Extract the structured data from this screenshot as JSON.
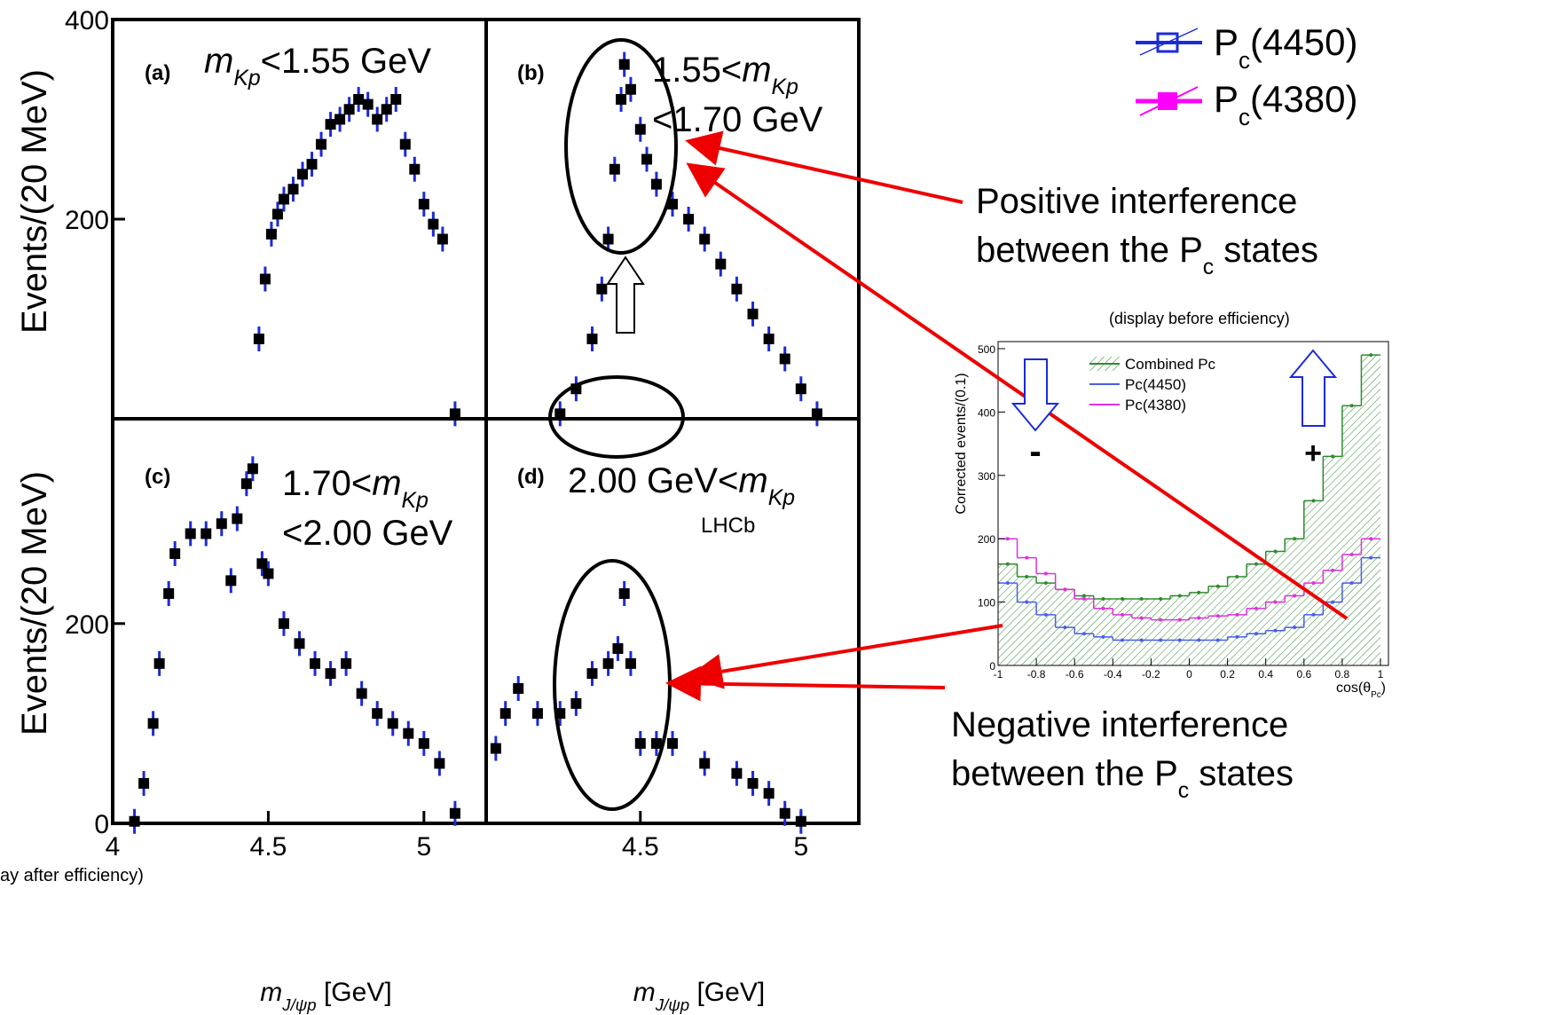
{
  "legend": [
    [
      {
        "text": "P"
      },
      {
        "text": "c",
        "sub": true
      },
      {
        "text": "(4450)"
      }
    ],
    [
      {
        "text": "P"
      },
      {
        "text": "c",
        "sub": true
      },
      {
        "text": "(4380)"
      }
    ]
  ],
  "annotations": [
    [
      [
        {
          "text": "Positive interference"
        }
      ],
      [
        {
          "text": "between the P"
        },
        {
          "text": "c",
          "sub": true
        },
        {
          "text": " states"
        }
      ]
    ],
    [
      [
        {
          "text": "Negative interference"
        }
      ],
      [
        {
          "text": "between the P"
        },
        {
          "text": "c",
          "sub": true
        },
        {
          "text": " states"
        }
      ]
    ]
  ],
  "footnote": "ay after efficiency)",
  "chart_data": [
    {
      "type": "scatter",
      "panel": "(a)",
      "region": [
        [
          {
            "text": "m",
            "italic": true
          },
          {
            "text": "Kp",
            "sub": true,
            "italic": true
          },
          {
            "text": "<1.55 GeV"
          }
        ]
      ],
      "ylabel": "Events/(20 MeV)",
      "x": [
        4.47,
        4.49,
        4.51,
        4.53,
        4.55,
        4.58,
        4.61,
        4.64,
        4.67,
        4.7,
        4.73,
        4.76,
        4.79,
        4.82,
        4.85,
        4.88,
        4.91,
        4.94,
        4.97,
        5.0,
        5.03,
        5.06,
        5.1
      ],
      "values": [
        80,
        140,
        185,
        205,
        220,
        230,
        245,
        255,
        275,
        295,
        300,
        310,
        320,
        315,
        300,
        310,
        320,
        275,
        250,
        215,
        195,
        180,
        5
      ],
      "xlim": [
        4,
        5.2
      ],
      "ylim": [
        0,
        400
      ],
      "yticks": [
        200,
        400
      ]
    },
    {
      "type": "scatter",
      "panel": "(b)",
      "region": [
        [
          {
            "text": "1.55<"
          },
          {
            "text": "m",
            "italic": true
          },
          {
            "text": "Kp",
            "sub": true,
            "italic": true
          }
        ],
        [
          {
            "text": "<1.70 GeV"
          }
        ]
      ],
      "x": [
        4.25,
        4.3,
        4.35,
        4.38,
        4.4,
        4.42,
        4.44,
        4.45,
        4.47,
        4.5,
        4.52,
        4.55,
        4.6,
        4.65,
        4.7,
        4.75,
        4.8,
        4.85,
        4.9,
        4.95,
        5.0,
        5.05
      ],
      "values": [
        5,
        30,
        80,
        130,
        180,
        250,
        320,
        355,
        330,
        290,
        260,
        235,
        215,
        200,
        180,
        155,
        130,
        105,
        80,
        60,
        30,
        5
      ],
      "xlim": [
        4.02,
        5.18
      ],
      "ylim": [
        0,
        400
      ]
    },
    {
      "type": "scatter",
      "panel": "(c)",
      "region": [
        [
          {
            "text": "1.70<"
          },
          {
            "text": "m",
            "italic": true
          },
          {
            "text": "Kp",
            "sub": true,
            "italic": true
          }
        ],
        [
          {
            "text": "<2.00 GeV"
          }
        ]
      ],
      "ylabel": "Events/(20 MeV)",
      "xlabel": [
        {
          "text": "m",
          "italic": true
        },
        {
          "text": "J/ψp",
          "sub": true,
          "italic": true
        },
        {
          "text": " [GeV]"
        }
      ],
      "x": [
        4.07,
        4.1,
        4.13,
        4.15,
        4.18,
        4.2,
        4.25,
        4.3,
        4.35,
        4.38,
        4.4,
        4.43,
        4.45,
        4.48,
        4.5,
        4.55,
        4.6,
        4.65,
        4.7,
        4.75,
        4.8,
        4.85,
        4.9,
        4.95,
        5.0,
        5.05,
        5.1
      ],
      "values": [
        2,
        40,
        100,
        160,
        230,
        270,
        290,
        290,
        300,
        243,
        305,
        340,
        355,
        260,
        250,
        200,
        180,
        160,
        150,
        160,
        130,
        110,
        100,
        90,
        80,
        60,
        10
      ],
      "xlim": [
        4,
        5.2
      ],
      "ylim": [
        0,
        405
      ],
      "xticks": [
        4,
        4.5,
        5
      ],
      "yticks": [
        0,
        200
      ]
    },
    {
      "type": "scatter",
      "panel": "(d)",
      "region": [
        [
          {
            "text": "2.00 GeV<"
          },
          {
            "text": "m",
            "italic": true
          },
          {
            "text": "Kp",
            "sub": true,
            "italic": true
          }
        ]
      ],
      "note": "LHCb",
      "xlabel": [
        {
          "text": "m",
          "italic": true
        },
        {
          "text": "J/ψp",
          "sub": true,
          "italic": true
        },
        {
          "text": " [GeV]"
        }
      ],
      "x": [
        4.05,
        4.08,
        4.12,
        4.18,
        4.25,
        4.3,
        4.35,
        4.4,
        4.43,
        4.45,
        4.47,
        4.5,
        4.55,
        4.6,
        4.7,
        4.8,
        4.85,
        4.9,
        4.95,
        5.0
      ],
      "values": [
        75,
        110,
        135,
        110,
        110,
        120,
        150,
        160,
        175,
        230,
        160,
        80,
        80,
        80,
        60,
        50,
        40,
        30,
        10,
        2
      ],
      "xlim": [
        4.02,
        5.18
      ],
      "ylim": [
        0,
        405
      ],
      "xticks": [
        4.5,
        5
      ]
    },
    {
      "type": "histogram",
      "title": "(display before efficiency)",
      "ylabel": "Corrected events/(0.1)",
      "xlabel": [
        {
          "text": "cos(θ"
        },
        {
          "text": "Pc",
          "sub": true
        },
        {
          "text": ")"
        }
      ],
      "bins": [
        -1,
        -0.9,
        -0.8,
        -0.7,
        -0.6,
        -0.5,
        -0.4,
        -0.3,
        -0.2,
        -0.1,
        0,
        0.1,
        0.2,
        0.3,
        0.4,
        0.5,
        0.6,
        0.7,
        0.8,
        0.9,
        1
      ],
      "series": [
        {
          "name": "Combined Pc",
          "color": "#2e8b2e",
          "hatch": true,
          "values": [
            160,
            140,
            130,
            120,
            110,
            105,
            105,
            105,
            105,
            110,
            115,
            125,
            140,
            160,
            180,
            200,
            260,
            330,
            410,
            490
          ]
        },
        {
          "name": "Pc(4450)",
          "color": "#4a5ee8",
          "values": [
            130,
            100,
            80,
            60,
            50,
            45,
            40,
            40,
            40,
            40,
            40,
            40,
            45,
            50,
            55,
            60,
            80,
            100,
            130,
            170
          ]
        },
        {
          "name": "Pc(4380)",
          "color": "#e030e0",
          "values": [
            200,
            170,
            145,
            120,
            105,
            90,
            80,
            75,
            72,
            72,
            75,
            78,
            80,
            90,
            100,
            110,
            130,
            150,
            175,
            200
          ]
        }
      ],
      "xlim": [
        -1,
        1
      ],
      "ylim": [
        0,
        500
      ],
      "xticks": [
        -1,
        -0.8,
        -0.6,
        -0.4,
        -0.2,
        0,
        0.2,
        0.4,
        0.6,
        0.8,
        1
      ],
      "yticks": [
        0,
        100,
        200,
        300,
        400,
        500
      ],
      "signs": [
        "-",
        "+"
      ]
    }
  ]
}
